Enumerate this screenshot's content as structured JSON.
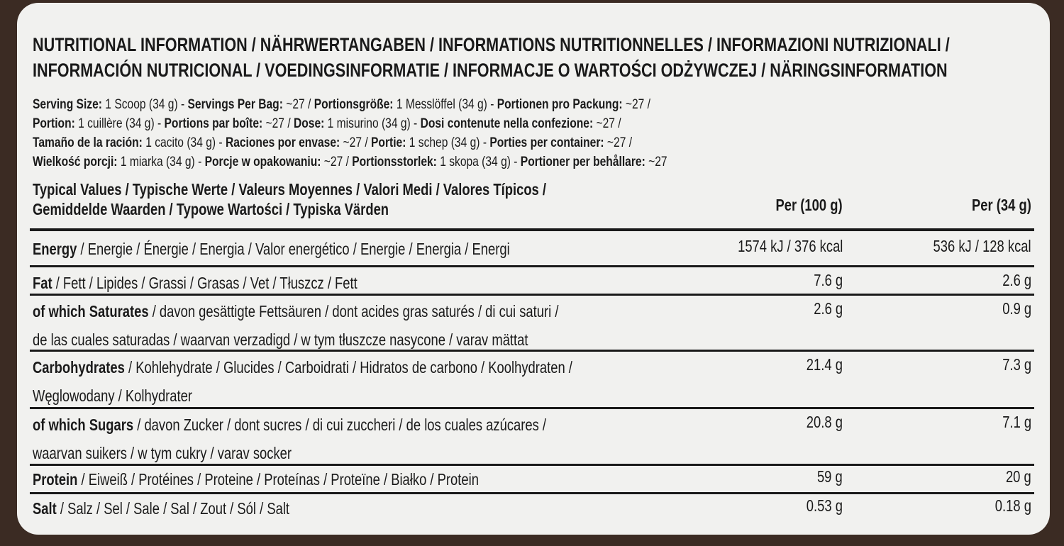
{
  "title_lines": [
    "NUTRITIONAL INFORMATION / NÄHRWERTANGABEN / INFORMATIONS NUTRITIONNELLES / INFORMAZIONI NUTRIZIONALI /",
    "INFORMACIÓN NUTRICIONAL / VOEDINGSINFORMATIE / INFORMACJE O WARTOŚCI ODŻYWCZEJ / NÄRINGSINFORMATION"
  ],
  "serving_lines": [
    [
      {
        "b": "Serving Size:",
        "t": " 1 Scoop (34 g) - "
      },
      {
        "b": "Servings Per Bag:",
        "t": " ~27 / "
      },
      {
        "b": "Portionsgröße:",
        "t": " 1 Messlöffel (34 g) - "
      },
      {
        "b": "Portionen pro Packung:",
        "t": " ~27 /"
      }
    ],
    [
      {
        "b": "Portion:",
        "t": " 1 cuillère (34 g) - "
      },
      {
        "b": "Portions par boîte:",
        "t": " ~27 / "
      },
      {
        "b": "Dose:",
        "t": " 1 misurino (34 g)  - "
      },
      {
        "b": "Dosi contenute nella confezione:",
        "t": " ~27 /"
      }
    ],
    [
      {
        "b": "Tamaño de la ración:",
        "t": " 1 cacito (34 g) - "
      },
      {
        "b": "Raciones por envase:",
        "t": " ~27 / "
      },
      {
        "b": "Portie:",
        "t": " 1 schep (34 g) - "
      },
      {
        "b": "Porties per container:",
        "t": " ~27 /"
      }
    ],
    [
      {
        "b": "Wielkość porcji:",
        "t": " 1 miarka (34 g) - "
      },
      {
        "b": "Porcje w opakowaniu:",
        "t": " ~27 / "
      },
      {
        "b": "Portionsstorlek:",
        "t": " 1 skopa (34 g) - "
      },
      {
        "b": "Portioner per behållare:",
        "t": " ~27"
      }
    ]
  ],
  "table": {
    "header_line1": "Typical Values / Typische Werte / Valeurs Moyennes / Valori Medi / Valores Típicos /",
    "header_line2": "Gemiddelde Waarden / Typowe Wartości / Typiska Värden",
    "col_per100": "Per (100 g)",
    "col_per34": "Per (34 g)",
    "rows": [
      {
        "bold": "Energy",
        "rest": " / Energie / Énergie / Energia / Valor energético / Energie / Energia / Energi",
        "line2": "",
        "per100": "1574 kJ / 376 kcal",
        "per34": "536 kJ / 128 kcal"
      },
      {
        "bold": "Fat",
        "rest": " / Fett / Lipides / Grassi / Grasas / Vet / Tłuszcz / Fett",
        "line2": "",
        "per100": "7.6 g",
        "per34": "2.6 g"
      },
      {
        "bold": "of which Saturates",
        "rest": " / davon gesättigte Fettsäuren / dont acides gras saturés / di cui saturi /",
        "line2": "de las cuales saturadas / waarvan verzadigd / w tym tłuszcze nasycone / varav mättat",
        "per100": "2.6 g",
        "per34": "0.9 g"
      },
      {
        "bold": "Carbohydrates",
        "rest": " / Kohlehydrate / Glucides / Carboidrati / Hidratos de carbono / Koolhydraten /",
        "line2": "Węglowodany / Kolhydrater",
        "per100": "21.4 g",
        "per34": "7.3 g"
      },
      {
        "bold": "of which Sugars",
        "rest": " / davon Zucker / dont sucres / di cui zuccheri / de los cuales azúcares /",
        "line2": "waarvan suikers / w tym cukry / varav socker",
        "per100": "20.8 g",
        "per34": "7.1 g"
      },
      {
        "bold": "Protein",
        "rest": " / Eiweiß / Protéines / Proteine / Proteínas / Proteïne / Białko / Protein",
        "line2": "",
        "per100": "59 g",
        "per34": "20 g"
      },
      {
        "bold": "Salt",
        "rest": " / Salz / Sel / Sale / Sal / Zout / Sól / Salt",
        "line2": "",
        "per100": "0.53 g",
        "per34": "0.18 g"
      }
    ]
  }
}
